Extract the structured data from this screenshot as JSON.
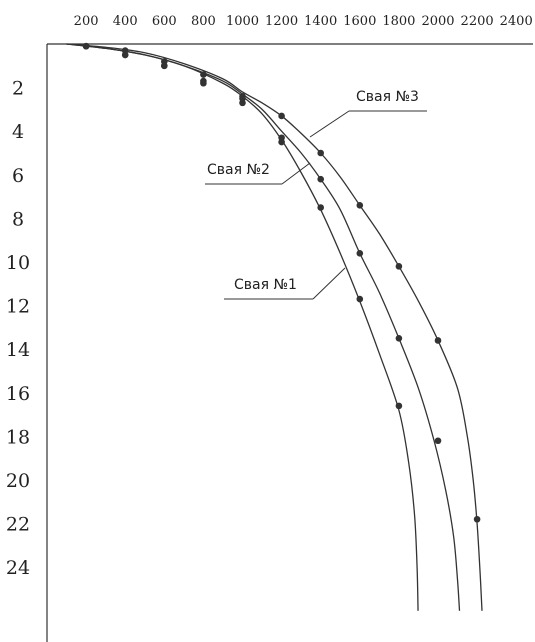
{
  "chart_data": {
    "type": "line",
    "title": "",
    "xlabel": "",
    "ylabel": "",
    "x_ticks": [
      "200",
      "400",
      "600",
      "800",
      "1000",
      "1200",
      "1400",
      "1600",
      "1800",
      "2000",
      "2200",
      "2400"
    ],
    "y_ticks": [
      "2",
      "4",
      "6",
      "8",
      "10",
      "12",
      "14",
      "16",
      "18",
      "20",
      "22",
      "24"
    ],
    "xlim": [
      0,
      2400
    ],
    "ylim": [
      0,
      26.5
    ],
    "y_axis_inverted": true,
    "x_axis_position": "top",
    "grid": false,
    "series": [
      {
        "name": "Свая №1",
        "curve": [
          [
            100,
            0
          ],
          [
            300,
            0.2
          ],
          [
            500,
            0.5
          ],
          [
            700,
            1.0
          ],
          [
            900,
            1.8
          ],
          [
            1000,
            2.4
          ],
          [
            1100,
            3.2
          ],
          [
            1200,
            4.4
          ],
          [
            1300,
            5.9
          ],
          [
            1400,
            7.6
          ],
          [
            1500,
            9.6
          ],
          [
            1600,
            11.8
          ],
          [
            1700,
            14.2
          ],
          [
            1800,
            16.8
          ],
          [
            1850,
            19.2
          ],
          [
            1880,
            21.6
          ],
          [
            1893,
            24.0
          ],
          [
            1898,
            26.0
          ]
        ],
        "points": [
          [
            200,
            0.1
          ],
          [
            400,
            0.5
          ],
          [
            600,
            1.0
          ],
          [
            800,
            1.8
          ],
          [
            1000,
            2.7
          ],
          [
            1200,
            4.5
          ],
          [
            1400,
            7.5
          ],
          [
            1600,
            11.7
          ],
          [
            1800,
            16.6
          ]
        ]
      },
      {
        "name": "Свая №2",
        "curve": [
          [
            100,
            0
          ],
          [
            300,
            0.2
          ],
          [
            500,
            0.5
          ],
          [
            700,
            1.0
          ],
          [
            900,
            1.7
          ],
          [
            1000,
            2.3
          ],
          [
            1100,
            3.0
          ],
          [
            1200,
            4.0
          ],
          [
            1300,
            5.0
          ],
          [
            1400,
            6.2
          ],
          [
            1500,
            7.6
          ],
          [
            1600,
            9.6
          ],
          [
            1700,
            11.4
          ],
          [
            1800,
            13.5
          ],
          [
            1900,
            15.8
          ],
          [
            1980,
            18.2
          ],
          [
            2040,
            20.5
          ],
          [
            2080,
            22.6
          ],
          [
            2100,
            24.6
          ],
          [
            2110,
            26.0
          ]
        ],
        "points": [
          [
            200,
            0.1
          ],
          [
            400,
            0.5
          ],
          [
            600,
            1.0
          ],
          [
            800,
            1.7
          ],
          [
            1000,
            2.5
          ],
          [
            1200,
            4.3
          ],
          [
            1400,
            6.2
          ],
          [
            1600,
            9.6
          ],
          [
            1800,
            13.5
          ],
          [
            2000,
            18.2
          ]
        ]
      },
      {
        "name": "Свая №3",
        "curve": [
          [
            100,
            0
          ],
          [
            300,
            0.15
          ],
          [
            500,
            0.4
          ],
          [
            700,
            0.9
          ],
          [
            900,
            1.6
          ],
          [
            1000,
            2.2
          ],
          [
            1100,
            2.7
          ],
          [
            1200,
            3.3
          ],
          [
            1300,
            4.1
          ],
          [
            1400,
            5.0
          ],
          [
            1500,
            6.1
          ],
          [
            1600,
            7.4
          ],
          [
            1700,
            8.7
          ],
          [
            1800,
            10.2
          ],
          [
            1900,
            11.8
          ],
          [
            2000,
            13.6
          ],
          [
            2100,
            15.8
          ],
          [
            2150,
            18.0
          ],
          [
            2180,
            20.0
          ],
          [
            2200,
            22.0
          ],
          [
            2215,
            24.2
          ],
          [
            2225,
            26.0
          ]
        ],
        "points": [
          [
            200,
            0.1
          ],
          [
            400,
            0.3
          ],
          [
            600,
            0.8
          ],
          [
            800,
            1.4
          ],
          [
            1000,
            2.4
          ],
          [
            1200,
            3.3
          ],
          [
            1400,
            5.0
          ],
          [
            1600,
            7.4
          ],
          [
            1800,
            10.2
          ],
          [
            2000,
            13.6
          ],
          [
            2200,
            21.8
          ]
        ]
      }
    ],
    "labels": [
      {
        "series": "Свая №3",
        "text": "Свая №3"
      },
      {
        "series": "Свая №2",
        "text": "Свая №2"
      },
      {
        "series": "Свая №1",
        "text": "Свая №1"
      }
    ]
  }
}
